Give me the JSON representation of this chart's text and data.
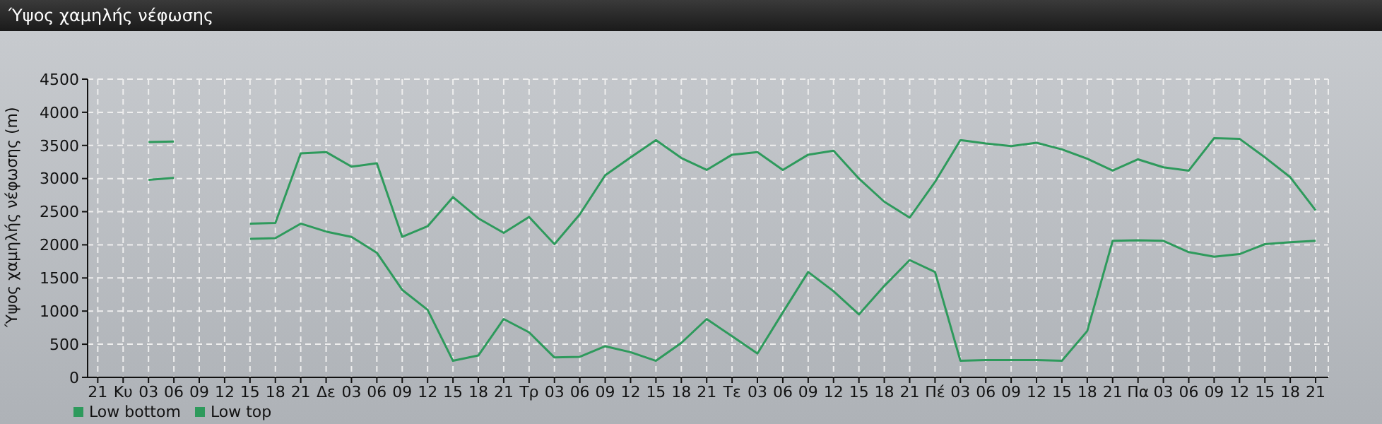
{
  "chart_data": {
    "type": "line",
    "title": "Ύψος χαμηλής νέφωσης",
    "ylabel": "Ύψος χαμηλής νέφωσης (m)",
    "categories": [
      "21",
      "Κυ",
      "03",
      "06",
      "09",
      "12",
      "15",
      "18",
      "21",
      "Δε",
      "03",
      "06",
      "09",
      "12",
      "15",
      "18",
      "21",
      "Τρ",
      "03",
      "06",
      "09",
      "12",
      "15",
      "18",
      "21",
      "Τε",
      "03",
      "06",
      "09",
      "12",
      "15",
      "18",
      "21",
      "Πέ",
      "03",
      "06",
      "09",
      "12",
      "15",
      "18",
      "21",
      "Πα",
      "03",
      "06",
      "09",
      "12",
      "15",
      "18",
      "21"
    ],
    "series": [
      {
        "name": "Low bottom",
        "color": "#2e9a5c",
        "values": [
          null,
          null,
          2980,
          3010,
          null,
          null,
          2090,
          2100,
          2320,
          2200,
          2120,
          1880,
          1320,
          1020,
          250,
          330,
          880,
          680,
          300,
          310,
          470,
          380,
          250,
          520,
          880,
          620,
          360,
          980,
          1590,
          1300,
          950,
          1380,
          1770,
          1590,
          250,
          260,
          260,
          260,
          250,
          700,
          2060,
          2070,
          2060,
          1890,
          1820,
          1860,
          2010,
          2040,
          2060
        ]
      },
      {
        "name": "Low top",
        "color": "#2e9a5c",
        "values": [
          null,
          null,
          3550,
          3560,
          null,
          null,
          2320,
          2330,
          3380,
          3400,
          3180,
          3230,
          2120,
          2280,
          2720,
          2400,
          2180,
          2420,
          2010,
          2460,
          3050,
          3320,
          3580,
          3310,
          3130,
          3360,
          3400,
          3130,
          3360,
          3420,
          3000,
          2650,
          2410,
          2950,
          3580,
          3530,
          3490,
          3540,
          3440,
          3300,
          3120,
          3290,
          3170,
          3120,
          3610,
          3600,
          3320,
          3020,
          2520
        ]
      }
    ],
    "ylim": [
      0,
      4500
    ],
    "yticks": [
      0,
      500,
      1000,
      1500,
      2000,
      2500,
      3000,
      3500,
      4000,
      4500
    ],
    "grid": true,
    "legend": "bottom left",
    "marker": "none",
    "line_style": "solid"
  }
}
